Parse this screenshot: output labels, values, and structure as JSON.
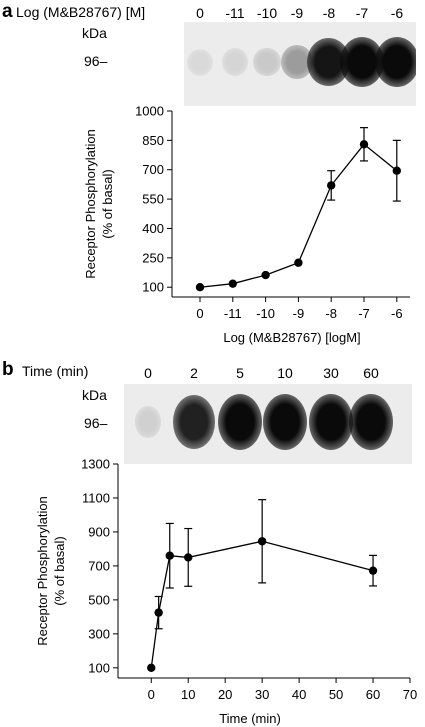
{
  "panel_a": {
    "letter": "a",
    "blot_header": "Log (M&B28767) [M]",
    "lane_labels": [
      "0",
      "-11",
      "-10",
      "-9",
      "-8",
      "-7",
      "-6"
    ],
    "kda_label": "kDa",
    "mw_marker": "96–",
    "band_intensity": [
      0.08,
      0.1,
      0.15,
      0.35,
      0.95,
      1.0,
      1.0
    ]
  },
  "panel_b": {
    "letter": "b",
    "blot_header": "Time (min)",
    "lane_labels": [
      "0",
      "2",
      "5",
      "10",
      "30",
      "60"
    ],
    "kda_label": "kDa",
    "mw_marker": "96–",
    "band_intensity": [
      0.12,
      0.9,
      1.0,
      1.0,
      1.0,
      1.0
    ]
  },
  "chart_data": [
    {
      "type": "line",
      "xlabel": "Log (M&B28767) [logM]",
      "ylabel": "Receptor Phosphorylation (% of basal)",
      "ylabel_lines": [
        "Receptor Phosphorylation",
        "(% of basal)"
      ],
      "categories": [
        "0",
        "-11",
        "-10",
        "-9",
        "-8",
        "-7",
        "-6"
      ],
      "y_ticks": [
        100,
        250,
        400,
        550,
        700,
        850,
        1000
      ],
      "ylim": [
        50,
        1000
      ],
      "series": [
        {
          "values": [
            100,
            118,
            162,
            225,
            620,
            830,
            695
          ],
          "errors": [
            0,
            0,
            0,
            0,
            75,
            85,
            155
          ]
        }
      ]
    },
    {
      "type": "line",
      "xlabel": "Time (min)",
      "ylabel": "Receptor Phosphorylation (% of basal)",
      "ylabel_lines": [
        "Receptor Phosphorylation",
        "(% of basal)"
      ],
      "x_ticks": [
        0,
        10,
        20,
        30,
        40,
        50,
        60,
        70
      ],
      "y_ticks": [
        100,
        300,
        500,
        700,
        900,
        1100,
        1300
      ],
      "xlim": [
        -9,
        70
      ],
      "ylim": [
        40,
        1300
      ],
      "series": [
        {
          "x": [
            0,
            2,
            5,
            10,
            30,
            60
          ],
          "values": [
            100,
            425,
            760,
            750,
            845,
            672
          ],
          "errors": [
            0,
            95,
            190,
            170,
            245,
            90
          ]
        }
      ]
    }
  ]
}
